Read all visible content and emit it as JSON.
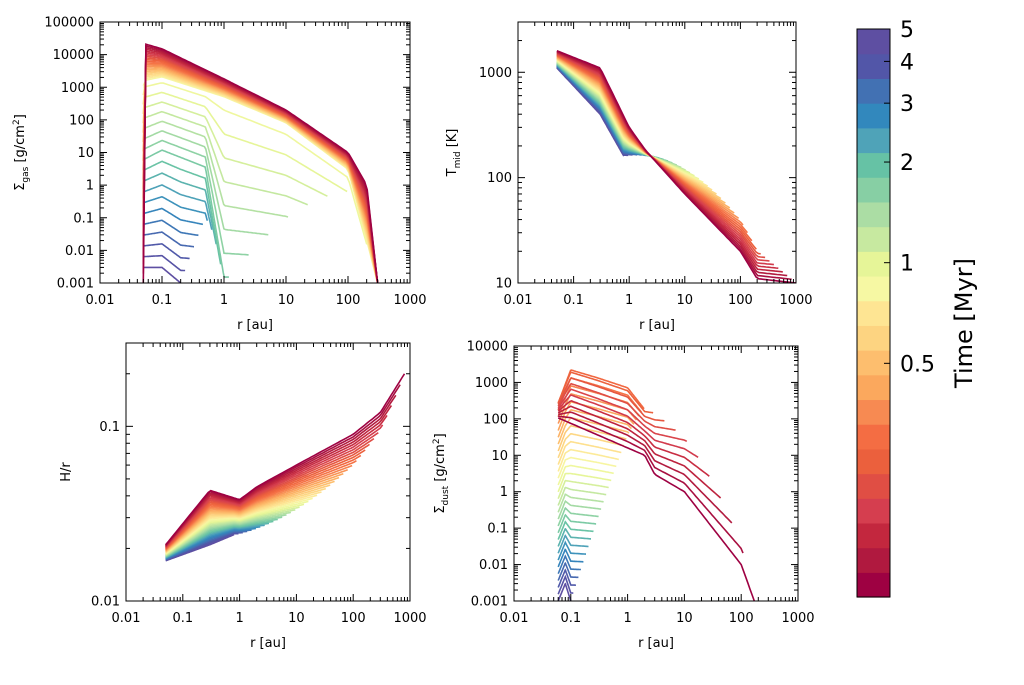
{
  "chart_data": [
    {
      "type": "line",
      "panel": "surface-density-gas",
      "ylabel": {
        "sym": "Σ",
        "sub": "gas",
        "unit": " [g/cm",
        "sup": "2",
        "end": "]"
      },
      "xlabel": "r [au]",
      "xlim": [
        0.01,
        1000
      ],
      "ylim": [
        0.001,
        100000
      ],
      "xscale": "log",
      "yscale": "log",
      "xticks": [
        "0.01",
        "0.1",
        "1",
        "10",
        "100",
        "1000"
      ],
      "yticks": [
        "0.001",
        "0.01",
        "0.1",
        "1",
        "10",
        "100",
        "1000",
        "10000",
        "100000"
      ],
      "series_count": 40,
      "time_range_myr": [
        0.1,
        5
      ],
      "profile_samples": {
        "earliest": {
          "r": [
            0.05,
            0.05,
            0.1,
            1,
            10,
            100,
            200,
            300
          ],
          "y": [
            0.001,
            22000,
            15000,
            1800,
            200,
            10,
            1,
            0.001
          ]
        },
        "t_1myr": {
          "r": [
            0.05,
            0.1,
            1,
            10,
            100,
            300
          ],
          "y": [
            1500,
            2000,
            500,
            80,
            3,
            0.001
          ]
        },
        "t_2myr": {
          "r": [
            0.05,
            0.1,
            0.5,
            1
          ],
          "y": [
            5,
            10,
            3,
            0.001
          ]
        },
        "latest": {
          "r": [
            0.05,
            0.1,
            0.2
          ],
          "y": [
            0.003,
            0.003,
            0.001
          ]
        }
      }
    },
    {
      "type": "line",
      "panel": "midplane-temperature",
      "ylabel": {
        "sym": "T",
        "sub": "mid",
        "unit": " [K]",
        "sup": "",
        "end": ""
      },
      "xlabel": "r [au]",
      "xlim": [
        0.01,
        1000
      ],
      "ylim": [
        10,
        3000
      ],
      "xscale": "log",
      "yscale": "log",
      "xticks": [
        "0.01",
        "0.1",
        "1",
        "10",
        "100",
        "1000"
      ],
      "yticks": [
        "10",
        "100",
        "1000"
      ],
      "series_count": 40,
      "profile_samples": {
        "earliest": {
          "r": [
            0.05,
            0.3,
            1,
            2,
            10,
            100,
            200,
            1000
          ],
          "y": [
            1600,
            1100,
            300,
            180,
            70,
            20,
            11,
            10
          ]
        },
        "latest": {
          "r": [
            0.05,
            0.3,
            0.8
          ],
          "y": [
            1100,
            400,
            160
          ]
        }
      }
    },
    {
      "type": "line",
      "panel": "aspect-ratio",
      "ylabel": {
        "sym": "H/r",
        "sub": "",
        "unit": "",
        "sup": "",
        "end": ""
      },
      "xlabel": "r [au]",
      "xlim": [
        0.01,
        1000
      ],
      "ylim": [
        0.01,
        0.3
      ],
      "xscale": "log",
      "yscale": "log",
      "xticks": [
        "0.01",
        "0.1",
        "1",
        "10",
        "100",
        "1000"
      ],
      "yticks": [
        "0.01",
        "0.1"
      ],
      "series_count": 40,
      "profile_samples": {
        "earliest": {
          "r": [
            0.05,
            0.3,
            1,
            2,
            10,
            100,
            300,
            800
          ],
          "y": [
            0.021,
            0.043,
            0.038,
            0.045,
            0.06,
            0.09,
            0.12,
            0.2
          ]
        },
        "latest": {
          "r": [
            0.05,
            0.3,
            0.8
          ],
          "y": [
            0.017,
            0.021,
            0.024
          ]
        }
      }
    },
    {
      "type": "line",
      "panel": "surface-density-dust",
      "ylabel": {
        "sym": "Σ",
        "sub": "dust",
        "unit": " [g/cm",
        "sup": "2",
        "end": "]"
      },
      "xlabel": "r [au]",
      "xlim": [
        0.01,
        1000
      ],
      "ylim": [
        0.001,
        10000
      ],
      "xscale": "log",
      "yscale": "log",
      "xticks": [
        "0.01",
        "0.1",
        "1",
        "10",
        "100",
        "1000"
      ],
      "yticks": [
        "0.001",
        "0.01",
        "0.1",
        "1",
        "10",
        "100",
        "1000",
        "10000"
      ],
      "series_count": 40,
      "profile_samples": {
        "earliest": {
          "r": [
            0.05,
            0.05,
            2,
            3,
            10,
            100,
            170
          ],
          "y": [
            0.001,
            120,
            10,
            3,
            1,
            0.01,
            0.001
          ]
        },
        "t_0_5myr": {
          "r": [
            0.06,
            0.1,
            0.3,
            1,
            2
          ],
          "y": [
            300,
            2500,
            1500,
            800,
            200
          ]
        },
        "latest": {
          "r": [
            0.06,
            0.08,
            0.1
          ],
          "y": [
            0.001,
            0.003,
            0.001
          ]
        }
      }
    }
  ],
  "colorbar": {
    "label": "Time [Myr]",
    "ticks": [
      "5",
      "4",
      "3",
      "2",
      "1",
      "0.5"
    ],
    "tick_values": [
      5,
      4,
      3,
      2,
      1,
      0.5
    ],
    "range": [
      0.1,
      5
    ],
    "scale": "log",
    "colors": [
      "#9e0142",
      "#b0193f",
      "#c3273e",
      "#d53e4f",
      "#e04e44",
      "#eb603d",
      "#f46d43",
      "#f78a52",
      "#fba85d",
      "#fdbe6e",
      "#fdd481",
      "#fee593",
      "#f6f8a3",
      "#e6f598",
      "#c7e9a0",
      "#abdda4",
      "#87cfa4",
      "#66c2a5",
      "#4fa3b8",
      "#3288bd",
      "#4271b3",
      "#5256a8",
      "#5e4fa2"
    ]
  }
}
